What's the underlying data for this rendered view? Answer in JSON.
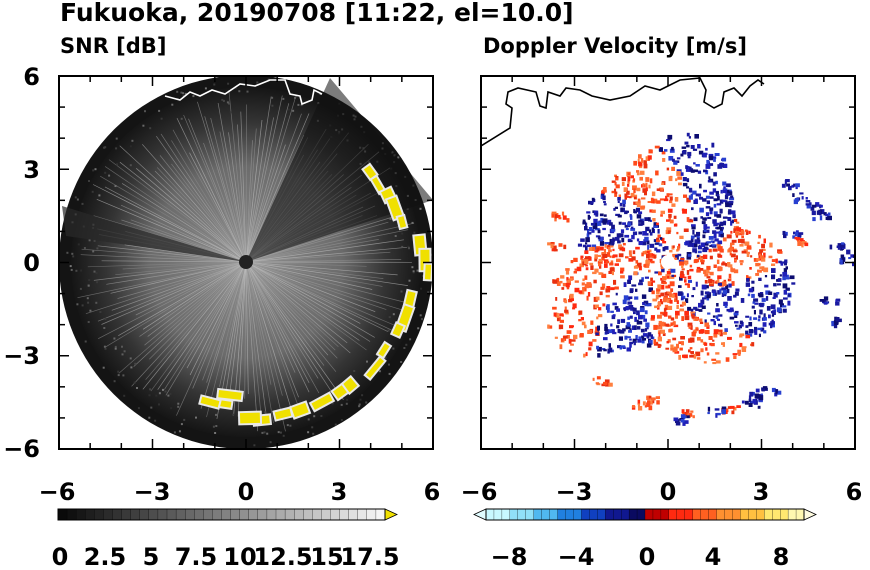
{
  "title": "Fukuoka, 20190708 [11:22, el=10.0]",
  "colors": {
    "background": "#ffffff",
    "radar_disk": "#1a1a1a",
    "echo_yellow": "#f0e000",
    "coast_line": "#000000",
    "doppler_positive": "#ff4a1a",
    "doppler_negative": "#1a1aa0"
  },
  "chart_data": [
    {
      "type": "heatmap",
      "title": "SNR [dB]",
      "xlim": [
        -6,
        6
      ],
      "ylim": [
        -6,
        6
      ],
      "x_ticks": [
        "−6",
        "−3",
        "0",
        "3",
        "6"
      ],
      "y_ticks": [
        "6",
        "3",
        "0",
        "−3",
        "−6"
      ],
      "colorbar": {
        "range": [
          0,
          18
        ],
        "tick_labels": [
          "0",
          "2.5",
          "5",
          "7.5",
          "10",
          "12.5",
          "15",
          "17.5"
        ],
        "extend": "max"
      }
    },
    {
      "type": "heatmap",
      "title": "Doppler Velocity [m/s]",
      "xlim": [
        -6,
        6
      ],
      "ylim": [
        -6,
        6
      ],
      "x_ticks": [
        "−6",
        "−3",
        "0",
        "3",
        "6"
      ],
      "y_ticks": [],
      "colorbar": {
        "range": [
          -10,
          10
        ],
        "tick_labels": [
          "−8",
          "−4",
          "0",
          "4",
          "8"
        ],
        "extend": "both"
      }
    }
  ]
}
